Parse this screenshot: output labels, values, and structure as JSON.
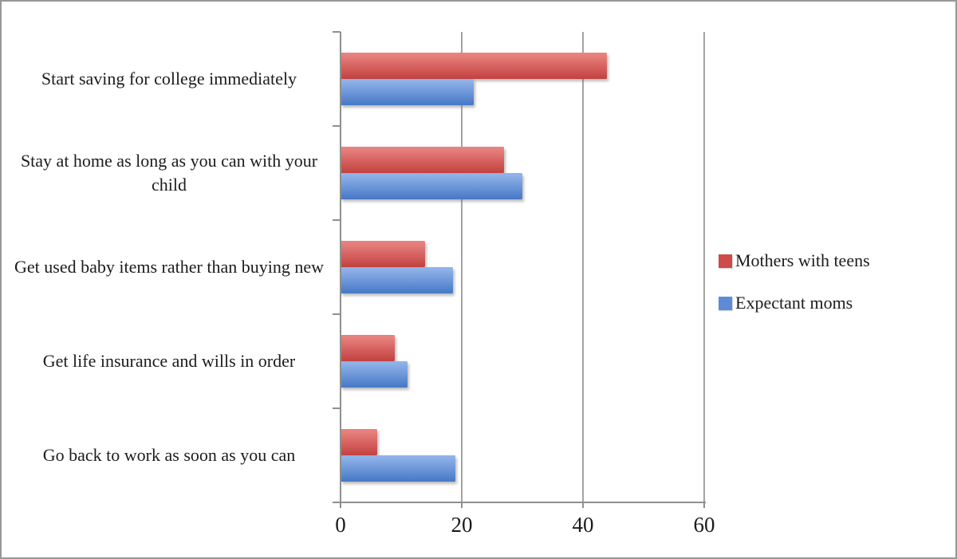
{
  "chart_data": {
    "type": "bar",
    "orientation": "horizontal",
    "title": "",
    "xlabel": "",
    "ylabel": "",
    "categories": [
      "Start saving for college immediately",
      "Stay at home as long as you can with your child",
      "Get used baby items rather than buying new",
      "Get life insurance and wills in order",
      "Go back to work as soon as you can"
    ],
    "series": [
      {
        "name": "Mothers with teens",
        "values": [
          44,
          27,
          14,
          9,
          6
        ],
        "color_top": "#E8827F",
        "color_bottom": "#C2413F",
        "legend_color": "#CD4B48"
      },
      {
        "name": "Expectant moms",
        "values": [
          22,
          30,
          18.5,
          11,
          19
        ],
        "color_top": "#8FB2E8",
        "color_bottom": "#4678C6",
        "legend_color": "#5E8BD8"
      }
    ],
    "xlim": [
      0,
      60
    ],
    "x_ticks": [
      0,
      20,
      40,
      60
    ],
    "grid": true,
    "legend_position": "right",
    "colors": {
      "axis_line": "#8f8f8f",
      "gridline": "#a3a3a3",
      "text": "#1c1c1c",
      "background": "#ffffff",
      "frame_border": "#979797"
    }
  }
}
